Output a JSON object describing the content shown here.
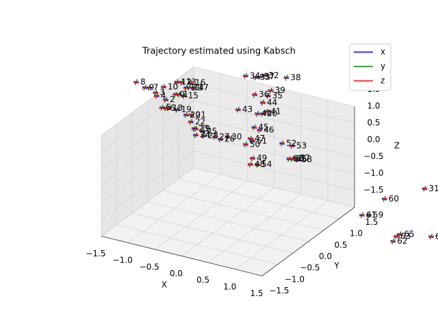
{
  "chart_data": {
    "type": "scatter3d",
    "title": "Trajectory estimated using Kabsch",
    "xlabel": "X",
    "ylabel": "Y",
    "zlabel": "Z",
    "xlim": [
      -1.5,
      1.5
    ],
    "ylim": [
      -1.5,
      1.5
    ],
    "zlim": [
      -1.5,
      1.5
    ],
    "xticks": [
      {
        "value": -1.5,
        "label": "−1.5"
      },
      {
        "value": -1.0,
        "label": "−1.0"
      },
      {
        "value": -0.5,
        "label": "−0.5"
      },
      {
        "value": 0.0,
        "label": "0.0"
      },
      0.5,
      {
        "value": 1.0,
        "label": "1.0"
      },
      1.5
    ],
    "yticks": [
      {
        "value": -1.5,
        "label": "−1.5"
      },
      {
        "value": -1.0,
        "label": "−1.0"
      },
      {
        "value": -0.5,
        "label": "−0.5"
      },
      {
        "value": 0.0,
        "label": "0.0"
      },
      0.5,
      {
        "value": 1.0,
        "label": "1.0"
      },
      1.5
    ],
    "zticks": [
      {
        "value": -1.5,
        "label": "−1.5"
      },
      {
        "value": -1.0,
        "label": "−1.0"
      },
      {
        "value": -0.5,
        "label": "−0.5"
      },
      {
        "value": 0.0,
        "label": "0.0"
      },
      0.5,
      {
        "value": 1.0,
        "label": "1.0"
      },
      1.5
    ],
    "grid": true,
    "legend_position": "upper right",
    "legend": [
      {
        "name": "x",
        "color": "#0000ff"
      },
      {
        "name": "y",
        "color": "#008000"
      },
      {
        "name": "z",
        "color": "#ff0000"
      }
    ],
    "points": [
      {
        "label": "0",
        "x": -0.98,
        "y": 0,
        "z": 1.9
      },
      {
        "label": "1",
        "x": -0.91,
        "y": 0,
        "z": 1.93
      },
      {
        "label": "2",
        "x": -1.16,
        "y": 0,
        "z": 1.67
      },
      {
        "label": "3",
        "x": -1.35,
        "y": 0,
        "z": 1.81
      },
      {
        "label": "4",
        "x": -1.33,
        "y": 0,
        "z": 1.72
      },
      {
        "label": "5",
        "x": -1.23,
        "y": 0,
        "z": 1.41
      },
      {
        "label": "6",
        "x": -1.16,
        "y": 0,
        "z": 1.42
      },
      {
        "label": "7",
        "x": -1.47,
        "y": 0,
        "z": 1.91
      },
      {
        "label": "8",
        "x": -1.71,
        "y": 0,
        "z": 1.98
      },
      {
        "label": "9",
        "x": -1.55,
        "y": 0,
        "z": 1.88
      },
      {
        "label": "10",
        "x": -1.2,
        "y": 0,
        "z": 2.04
      },
      {
        "label": "11",
        "x": -0.78,
        "y": 0,
        "z": 2.18
      },
      {
        "label": "12",
        "x": -0.95,
        "y": 0,
        "z": 2.28
      },
      {
        "label": "13",
        "x": -0.86,
        "y": 0,
        "z": 2.31
      },
      {
        "label": "14",
        "x": -0.72,
        "y": 0,
        "z": 2.21
      },
      {
        "label": "15",
        "x": -0.82,
        "y": 0,
        "z": 1.92
      },
      {
        "label": "16",
        "x": -0.69,
        "y": 0,
        "z": 2.36
      },
      {
        "label": "17",
        "x": -0.63,
        "y": 0,
        "z": 2.24
      },
      {
        "label": "18",
        "x": -1.11,
        "y": 0,
        "z": 1.44
      },
      {
        "label": "19",
        "x": -0.95,
        "y": 0,
        "z": 1.46
      },
      {
        "label": "20",
        "x": -0.78,
        "y": 0,
        "z": 1.37
      },
      {
        "label": "21",
        "x": -0.68,
        "y": 0,
        "z": 1.41
      },
      {
        "label": "22",
        "x": -0.69,
        "y": 0,
        "z": 1.2
      },
      {
        "label": "23",
        "x": -0.63,
        "y": 0,
        "z": 1.02
      },
      {
        "label": "24",
        "x": -0.6,
        "y": 0,
        "z": 0.84
      },
      {
        "label": "25",
        "x": -0.47,
        "y": 0,
        "z": 1.0
      },
      {
        "label": "26",
        "x": -0.14,
        "y": 0,
        "z": 0.9
      },
      {
        "label": "27",
        "x": -0.24,
        "y": 0,
        "z": 0.93
      },
      {
        "label": "28",
        "x": -0.45,
        "y": 0,
        "z": 0.88
      },
      {
        "label": "29",
        "x": -0.6,
        "y": 0,
        "z": 1.03
      },
      {
        "label": "30",
        "x": -0.01,
        "y": 0,
        "z": 1.02
      },
      {
        "label": "31",
        "x": 3.67,
        "y": 0,
        "z": 0.93
      },
      {
        "label": "32",
        "x": 0.68,
        "y": 0,
        "z": 3.12
      },
      {
        "label": "33",
        "x": 0.52,
        "y": 0,
        "z": 3.0
      },
      {
        "label": "34",
        "x": 0.33,
        "y": 0,
        "z": 2.97
      },
      {
        "label": "35",
        "x": 0.75,
        "y": 0,
        "z": 2.54
      },
      {
        "label": "36",
        "x": 0.5,
        "y": 0,
        "z": 2.48
      },
      {
        "label": "37",
        "x": 0.6,
        "y": 0,
        "z": 3.05
      },
      {
        "label": "38",
        "x": 1.09,
        "y": 0,
        "z": 3.22
      },
      {
        "label": "39",
        "x": 0.8,
        "y": 0,
        "z": 2.72
      },
      {
        "label": "40",
        "x": 0.65,
        "y": 0,
        "z": 1.97
      },
      {
        "label": "41",
        "x": 0.72,
        "y": 0,
        "z": 2.06
      },
      {
        "label": "42",
        "x": 0.55,
        "y": 0,
        "z": 1.93
      },
      {
        "label": "43",
        "x": 0.19,
        "y": 0,
        "z": 1.91
      },
      {
        "label": "44",
        "x": 0.65,
        "y": 0,
        "z": 2.3
      },
      {
        "label": "45",
        "x": 0.49,
        "y": 0,
        "z": 1.5
      },
      {
        "label": "46",
        "x": 0.59,
        "y": 0,
        "z": 1.46
      },
      {
        "label": "47",
        "x": 0.42,
        "y": 0,
        "z": 1.14
      },
      {
        "label": "48",
        "x": 0.42,
        "y": 0,
        "z": 0.37
      },
      {
        "label": "49",
        "x": 0.46,
        "y": 0,
        "z": 0.57
      },
      {
        "label": "50",
        "x": 0.33,
        "y": 0,
        "z": 0.93
      },
      {
        "label": "51",
        "x": 0.46,
        "y": 0,
        "z": 1.08
      },
      {
        "label": "52",
        "x": 1.01,
        "y": 0,
        "z": 1.23
      },
      {
        "label": "53",
        "x": 1.2,
        "y": 0,
        "z": 1.23
      },
      {
        "label": "54",
        "x": 0.55,
        "y": 0,
        "z": 0.42
      },
      {
        "label": "55",
        "x": 1.2,
        "y": 0,
        "z": 0.84
      },
      {
        "label": "56",
        "x": 1.14,
        "y": 0,
        "z": 0.82
      },
      {
        "label": "57",
        "x": 1.26,
        "y": 0,
        "z": 0.88
      },
      {
        "label": "58",
        "x": 1.3,
        "y": 0,
        "z": 0.86
      },
      {
        "label": "59",
        "x": 2.63,
        "y": 0,
        "z": -0.27
      },
      {
        "label": "60",
        "x": 2.92,
        "y": 0,
        "z": 0.33
      },
      {
        "label": "61",
        "x": 2.5,
        "y": 0,
        "z": -0.32
      },
      {
        "label": "62",
        "x": 3.08,
        "y": 0,
        "z": -0.87
      },
      {
        "label": "63",
        "x": 3.14,
        "y": 0,
        "z": -0.7
      },
      {
        "label": "64",
        "x": 3.79,
        "y": 0,
        "z": -0.45
      },
      {
        "label": "65",
        "x": 3.21,
        "y": 0,
        "z": -0.61
      }
    ]
  }
}
